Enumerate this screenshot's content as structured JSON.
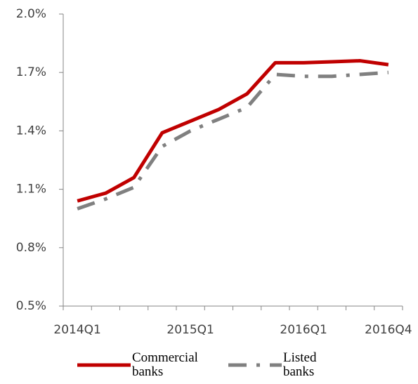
{
  "chart_data": {
    "type": "line",
    "categories": [
      "2014Q1",
      null,
      null,
      null,
      "2015Q1",
      null,
      null,
      null,
      "2016Q1",
      null,
      null,
      "2016Q4"
    ],
    "series": [
      {
        "name": "Commercial banks",
        "color": "#c00000",
        "values": [
          1.04,
          1.08,
          1.16,
          1.39,
          1.45,
          1.51,
          1.59,
          1.75,
          1.75,
          1.755,
          1.76,
          1.74
        ]
      },
      {
        "name": "Listed banks",
        "color": "#808080",
        "dash": true,
        "values": [
          1.0,
          1.05,
          1.11,
          1.32,
          1.4,
          1.46,
          1.52,
          1.69,
          1.68,
          1.68,
          1.69,
          1.7
        ]
      }
    ],
    "ylim": [
      0.5,
      2.0
    ],
    "yticks": [
      {
        "value": 0.5,
        "label": "0.5%"
      },
      {
        "value": 0.8,
        "label": "0.8%"
      },
      {
        "value": 1.1,
        "label": "1.1%"
      },
      {
        "value": 1.4,
        "label": "1.4%"
      },
      {
        "value": 1.7,
        "label": "1.7%"
      },
      {
        "value": 2.0,
        "label": "2.0%"
      }
    ],
    "legend": "bottom"
  }
}
